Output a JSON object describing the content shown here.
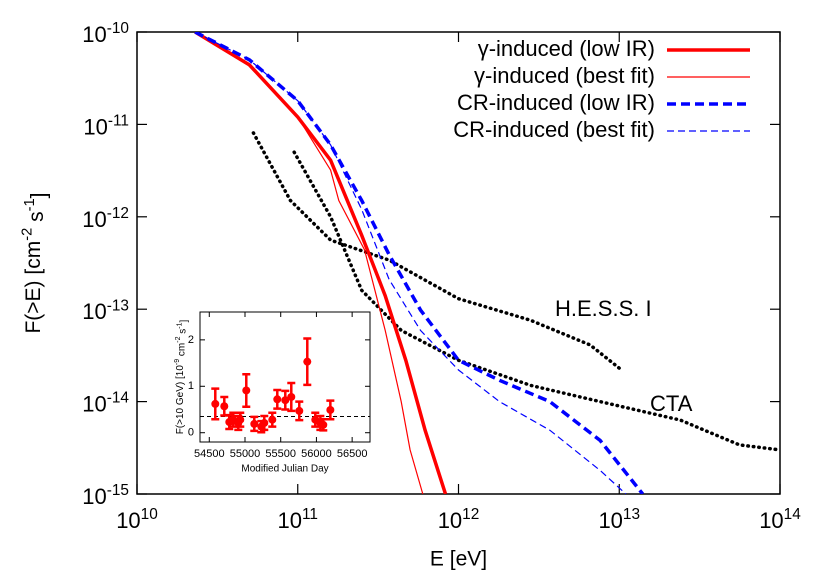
{
  "chart_data": [
    {
      "type": "line",
      "log_x": true,
      "log_y": true,
      "xlabel": "E [eV]",
      "ylabel": "F(>E) [cm^{-2} s^{-1}]",
      "xlim": [
        10000000000.0,
        100000000000000.0
      ],
      "ylim": [
        1e-15,
        1e-10
      ],
      "xticks": [
        {
          "value": 10000000000.0,
          "label": "10^{10}"
        },
        {
          "value": 100000000000.0,
          "label": "10^{11}"
        },
        {
          "value": 1000000000000.0,
          "label": "10^{12}"
        },
        {
          "value": 10000000000000.0,
          "label": "10^{13}"
        },
        {
          "value": 100000000000000.0,
          "label": "10^{14}"
        }
      ],
      "yticks": [
        {
          "value": 1e-15,
          "label": "10^{-15}"
        },
        {
          "value": 1e-14,
          "label": "10^{-14}"
        },
        {
          "value": 1e-13,
          "label": "10^{-13}"
        },
        {
          "value": 1e-12,
          "label": "10^{-12}"
        },
        {
          "value": 1e-11,
          "label": "10^{-11}"
        },
        {
          "value": 1e-10,
          "label": "10^{-10}"
        }
      ],
      "legend": "top-right",
      "series": [
        {
          "name": "γ-induced (low IR)",
          "color": "#ff0000",
          "style": "solid",
          "width": 3.5,
          "x": [
            23000000000.0,
            50000000000.0,
            100000000000.0,
            160000000000.0,
            250000000000.0,
            350000000000.0,
            470000000000.0,
            620000000000.0,
            830000000000.0
          ],
          "values": [
            1e-10,
            4.4e-11,
            1.2e-11,
            4.1e-12,
            6.3e-13,
            1.4e-13,
            2.8e-14,
            4.9e-15,
            1e-15
          ]
        },
        {
          "name": "γ-induced (best fit)",
          "color": "#ff0000",
          "style": "solid",
          "width": 1.2,
          "x": [
            23000000000.0,
            50000000000.0,
            100000000000.0,
            160000000000.0,
            180000000000.0,
            260000000000.0,
            350000000000.0,
            440000000000.0,
            500000000000.0,
            600000000000.0
          ],
          "values": [
            1e-10,
            4.4e-11,
            1.2e-11,
            3.2e-12,
            1.5e-12,
            4.4e-13,
            5.9e-14,
            1e-14,
            3e-15,
            1e-15
          ]
        },
        {
          "name": "CR-induced (low IR)",
          "color": "#0000ff",
          "style": "dashed",
          "width": 3.5,
          "x": [
            23000000000.0,
            50000000000.0,
            100000000000.0,
            160000000000.0,
            250000000000.0,
            370000000000.0,
            580000000000.0,
            1000000000000.0,
            1800000000000.0,
            3700000000000.0,
            7600000000000.0,
            12000000000000.0,
            14000000000000.0
          ],
          "values": [
            1e-10,
            5e-11,
            1.8e-11,
            6e-12,
            1.5e-12,
            3.9e-13,
            9.8e-14,
            2.8e-14,
            1.7e-14,
            1e-14,
            3.8e-15,
            1.4e-15,
            1e-15
          ]
        },
        {
          "name": "CR-induced (best fit)",
          "color": "#0000ff",
          "style": "dashed",
          "width": 1.2,
          "x": [
            23000000000.0,
            50000000000.0,
            100000000000.0,
            160000000000.0,
            250000000000.0,
            370000000000.0,
            580000000000.0,
            1000000000000.0,
            1800000000000.0,
            3700000000000.0,
            7600000000000.0,
            11000000000000.0
          ],
          "values": [
            1e-10,
            5e-11,
            1.8e-11,
            6e-12,
            1.2e-12,
            2.1e-13,
            5.9e-14,
            2.2e-14,
            1e-14,
            4.9e-15,
            1.8e-15,
            1e-15
          ]
        }
      ],
      "curves": [
        {
          "label": "H.E.S.S. I",
          "color": "#000000",
          "style": "dotted",
          "width": 3.5,
          "x": [
            53000000000.0,
            90000000000.0,
            160000000000.0,
            370000000000.0,
            1000000000000.0,
            2800000000000.0,
            6600000000000.0,
            10000000000000.0
          ],
          "values": [
            8.1e-12,
            1.5e-12,
            5.6e-13,
            3.4e-13,
            1.3e-13,
            7.6e-14,
            4.1e-14,
            2.3e-14
          ]
        },
        {
          "label": "CTA",
          "color": "#000000",
          "style": "dotted",
          "width": 3.5,
          "x": [
            95000000000.0,
            160000000000.0,
            250000000000.0,
            440000000000.0,
            1000000000000.0,
            2800000000000.0,
            7600000000000.0,
            24000000000000.0,
            56000000000000.0,
            100000000000000.0
          ],
          "values": [
            5e-12,
            1e-12,
            1.6e-13,
            5.9e-14,
            2.8e-14,
            1.5e-14,
            1e-14,
            6.3e-15,
            3.4e-15,
            3e-15
          ]
        }
      ]
    },
    {
      "type": "errorbar",
      "xlabel": "Modified Julian Day",
      "ylabel": "F(>10 GeV) [10^{-9} cm^{-2} s^{-1}]",
      "xlim": [
        54370,
        56750
      ],
      "ylim": [
        -0.2,
        2.6
      ],
      "xticks": [
        54500,
        55000,
        55500,
        56000,
        56500
      ],
      "yticks": [
        0,
        1,
        2
      ],
      "color": "#ff0000",
      "reference_line": 0.35,
      "x": [
        54584,
        54710,
        54780,
        54836,
        54906,
        54934,
        55018,
        55130,
        55228,
        55270,
        55382,
        55452,
        55564,
        55648,
        55760,
        55872,
        55984,
        56055,
        56096,
        56195
      ],
      "values": [
        0.62,
        0.57,
        0.23,
        0.28,
        0.21,
        0.28,
        0.91,
        0.19,
        0.13,
        0.21,
        0.28,
        0.72,
        0.7,
        0.77,
        0.47,
        1.53,
        0.28,
        0.21,
        0.17,
        0.49
      ],
      "errors": [
        0.33,
        0.2,
        0.15,
        0.15,
        0.15,
        0.15,
        0.35,
        0.15,
        0.12,
        0.15,
        0.15,
        0.2,
        0.2,
        0.3,
        0.2,
        0.5,
        0.15,
        0.15,
        0.12,
        0.2
      ]
    }
  ]
}
